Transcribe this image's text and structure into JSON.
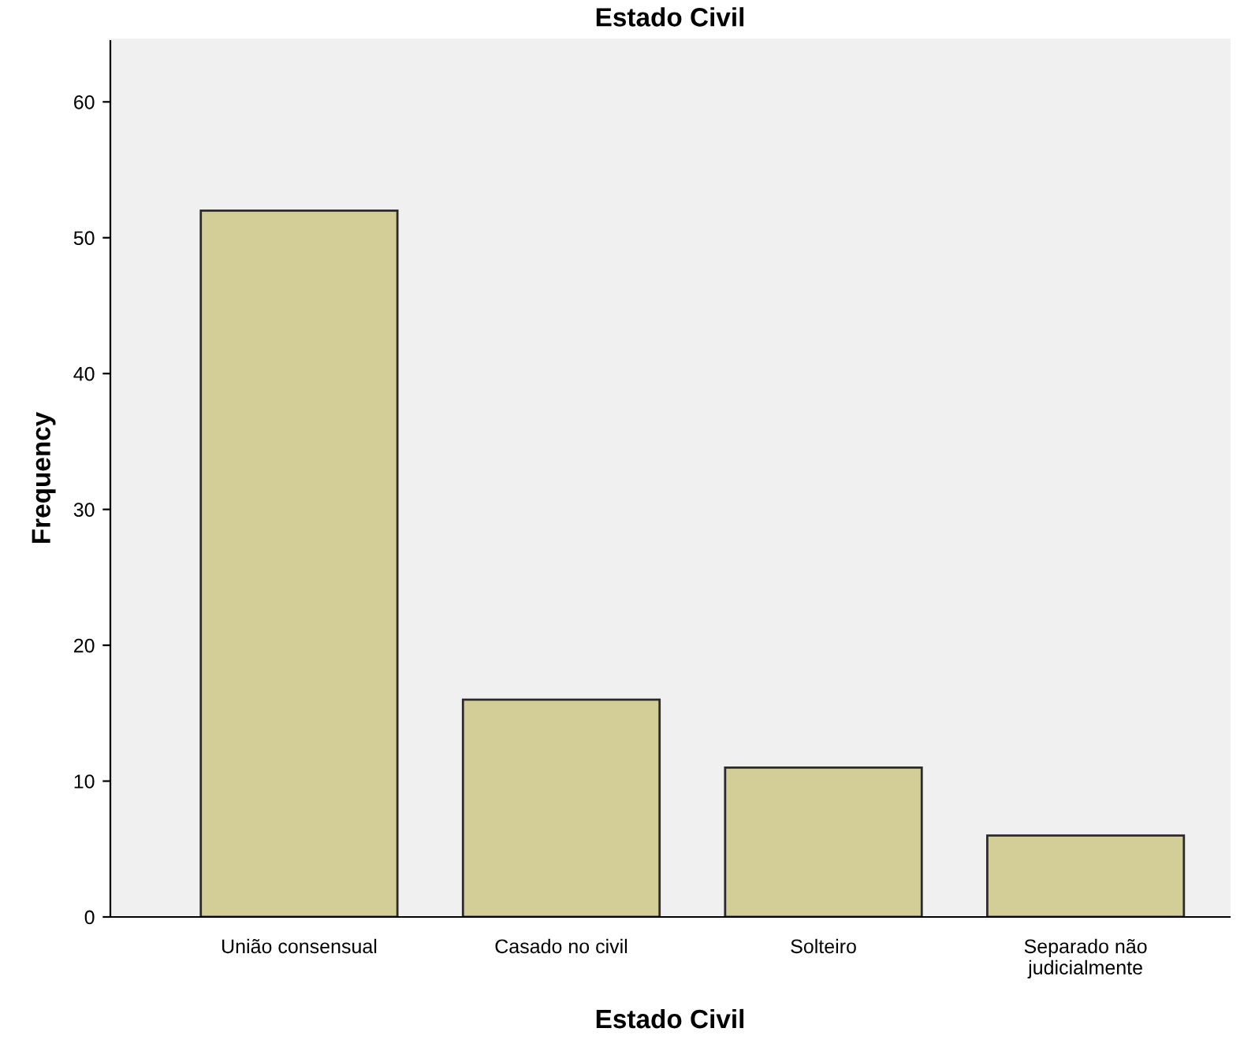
{
  "chart_data": {
    "type": "bar",
    "title": "Estado Civil",
    "xlabel": "Estado Civil",
    "ylabel": "Frequency",
    "categories": [
      "União consensual",
      "Casado no civil",
      "Solteiro",
      "Separado não judicialmente"
    ],
    "values": [
      52,
      16,
      11,
      6
    ],
    "color": "#d3ce97",
    "ylim": [
      0,
      64.6
    ],
    "yticks": [
      0,
      10,
      20,
      30,
      40,
      50,
      60
    ],
    "grid": false,
    "legend": false
  }
}
